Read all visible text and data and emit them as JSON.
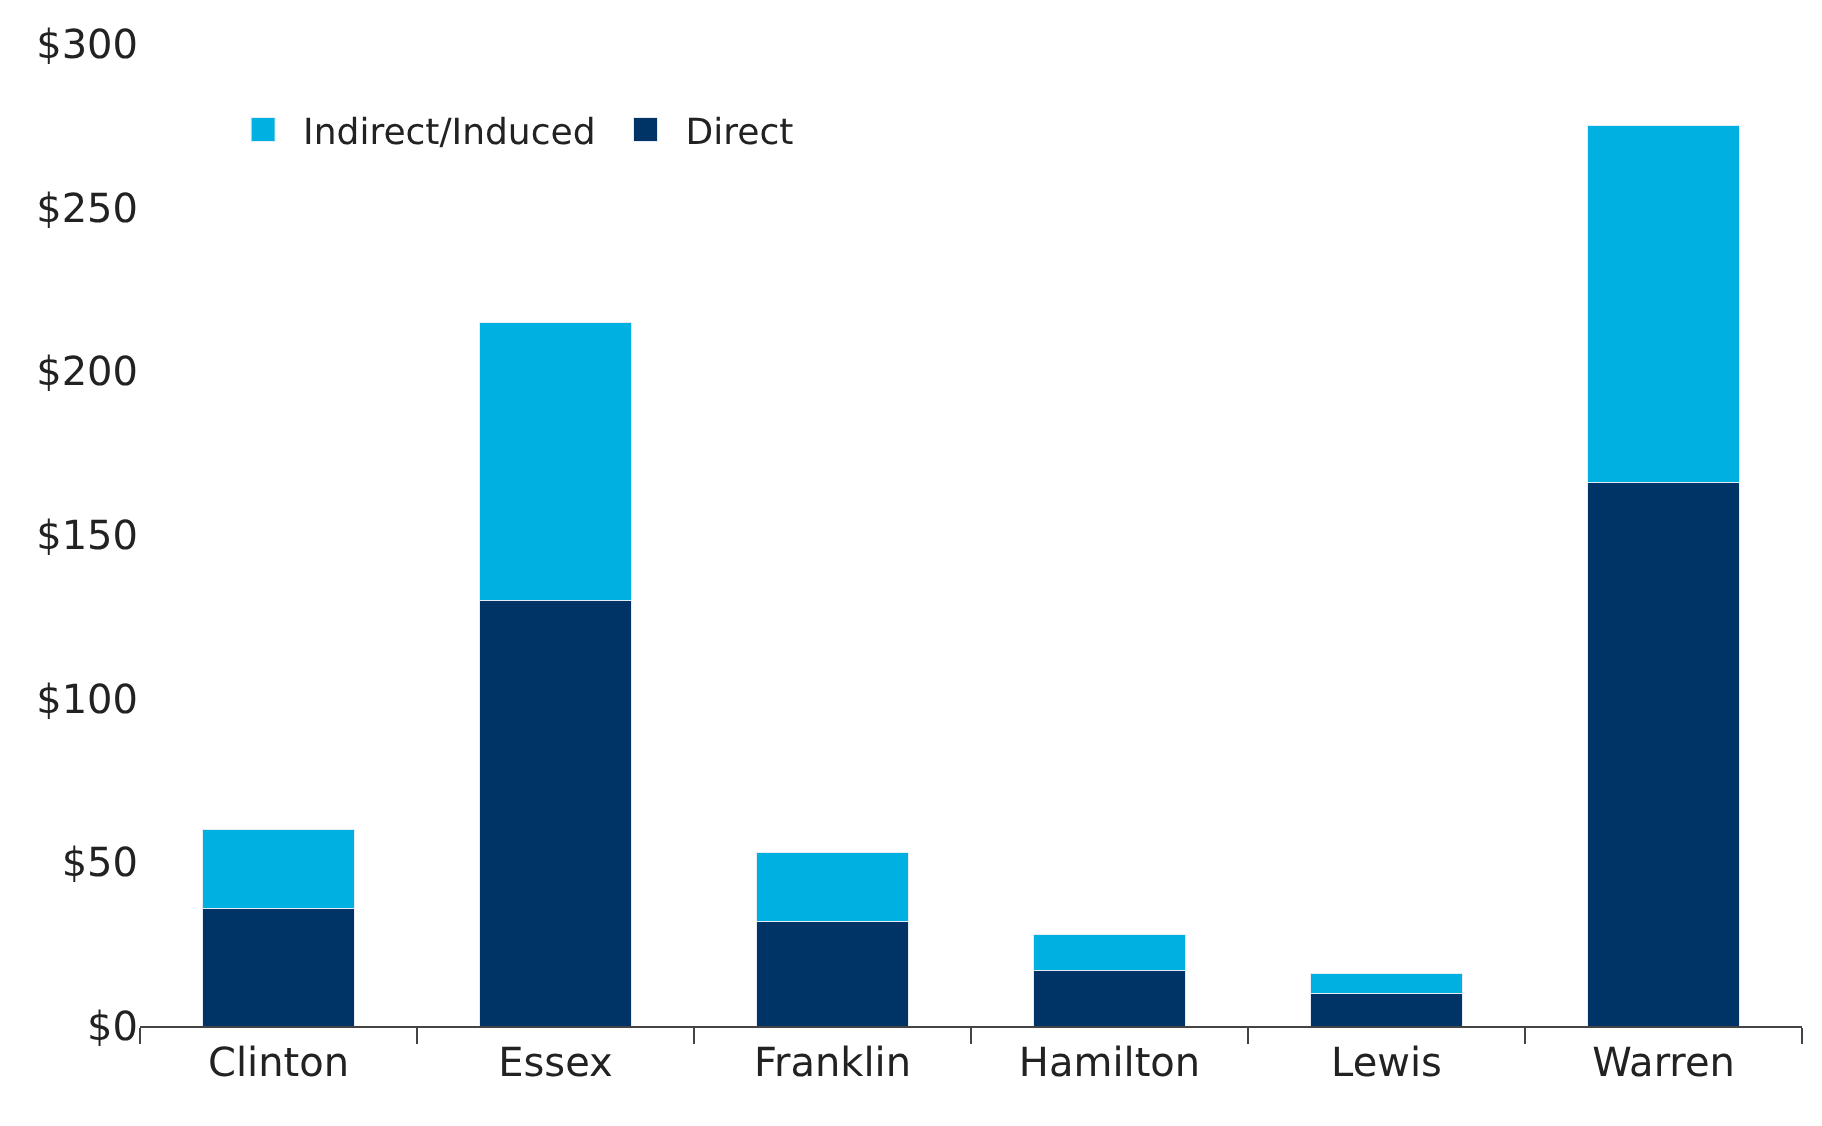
{
  "chart_data": {
    "type": "bar",
    "stacked": true,
    "categories": [
      "Clinton",
      "Essex",
      "Franklin",
      "Hamilton",
      "Lewis",
      "Warren"
    ],
    "series": [
      {
        "name": "Direct",
        "color": "#003366",
        "values": [
          36,
          130,
          32,
          17,
          10,
          166
        ]
      },
      {
        "name": "Indirect/Induced",
        "color": "#00b0e0",
        "values": [
          24,
          85,
          21,
          11,
          6,
          109
        ]
      }
    ],
    "ylim": [
      0,
      300
    ],
    "yticks": [
      {
        "value": 0,
        "label": "$0"
      },
      {
        "value": 50,
        "label": "$50"
      },
      {
        "value": 100,
        "label": "$100"
      },
      {
        "value": 150,
        "label": "$150"
      },
      {
        "value": 200,
        "label": "$200"
      },
      {
        "value": 250,
        "label": "$250"
      },
      {
        "value": 300,
        "label": "$300"
      }
    ],
    "legend": "top left"
  }
}
